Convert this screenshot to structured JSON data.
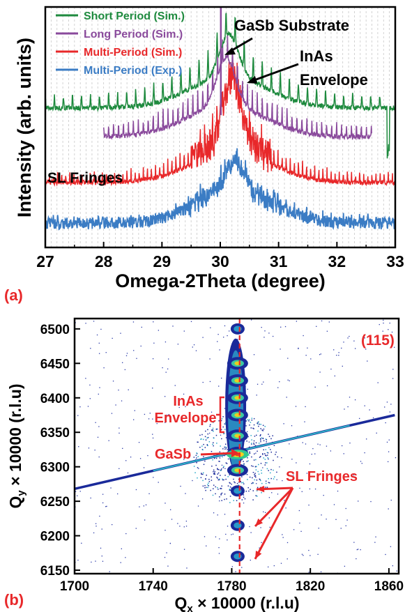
{
  "chart_data": [
    {
      "type": "line",
      "panel_label": "(a)",
      "xlabel": "Omega-2Theta (degree)",
      "ylabel": "Intensity (arb. units)",
      "xlim": [
        27,
        33
      ],
      "xticks": [
        27,
        28,
        29,
        30,
        31,
        32,
        33
      ],
      "grid": "vertical dashed",
      "legend_position": "top-left",
      "series": [
        {
          "name": "Short Period (Sim.)",
          "color": "#1e8a3e",
          "baseline": 0.58,
          "fringe_period": 0.155,
          "envelope_center": 30.15,
          "envelope_peak": 0.32
        },
        {
          "name": "Long Period (Sim.)",
          "color": "#8a4a9c",
          "baseline": 0.46,
          "fringe_period": 0.085,
          "envelope_center": 30.1,
          "envelope_peak": 0.36,
          "x_range": [
            28,
            32.6
          ]
        },
        {
          "name": "Multi-Period (Sim.)",
          "color": "#e8282a",
          "baseline": 0.27,
          "fringe_period": 0.07,
          "envelope_center": 30.2,
          "envelope_peak": 0.5
        },
        {
          "name": "Multi-Period (Exp.)",
          "color": "#3b7cc4",
          "baseline": 0.1,
          "fringe_period": 0.07,
          "envelope_center": 30.25,
          "envelope_peak": 0.22
        }
      ],
      "annotations": [
        {
          "text": "GaSb Substrate",
          "x": 30.05,
          "y": 0.99
        },
        {
          "text": "InAs",
          "x": 30.4,
          "y": 0.86
        },
        {
          "text": "Envelope",
          "x": 30.4,
          "y": 0.86
        },
        {
          "text": "SL Fringes",
          "x": 28.0,
          "y": 0.5
        }
      ]
    },
    {
      "type": "heatmap",
      "panel_label": "(b)",
      "reflection": "(115)",
      "xlabel_main": "Q",
      "xlabel_sub": "x",
      "xlabel_rest": " × 10000 (r.l.u)",
      "ylabel_main": "Q",
      "ylabel_sub": "y",
      "ylabel_rest": " × 10000 (r.l.u)",
      "xlim": [
        1700,
        1865
      ],
      "ylim": [
        6145,
        6515
      ],
      "xticks": [
        1700,
        1740,
        1780,
        1820,
        1860
      ],
      "yticks": [
        6150,
        6200,
        6250,
        6300,
        6350,
        6400,
        6450,
        6500
      ],
      "reference_line_x": 1784,
      "streak": {
        "x1": 1700,
        "y1": 6268,
        "x2": 1863,
        "y2": 6375
      },
      "sl_fringes_qy": [
        6500,
        6450,
        6425,
        6400,
        6375,
        6345,
        6320,
        6295,
        6265,
        6215,
        6170
      ],
      "annotations": [
        {
          "text": "InAs",
          "x": 1762,
          "y": 6408
        },
        {
          "text": "Envelope",
          "x": 1762,
          "y": 6380
        },
        {
          "text": "GaSb",
          "x": 1758,
          "y": 6318
        },
        {
          "text": "SL Fringes",
          "x": 1807,
          "y": 6282
        }
      ]
    }
  ]
}
